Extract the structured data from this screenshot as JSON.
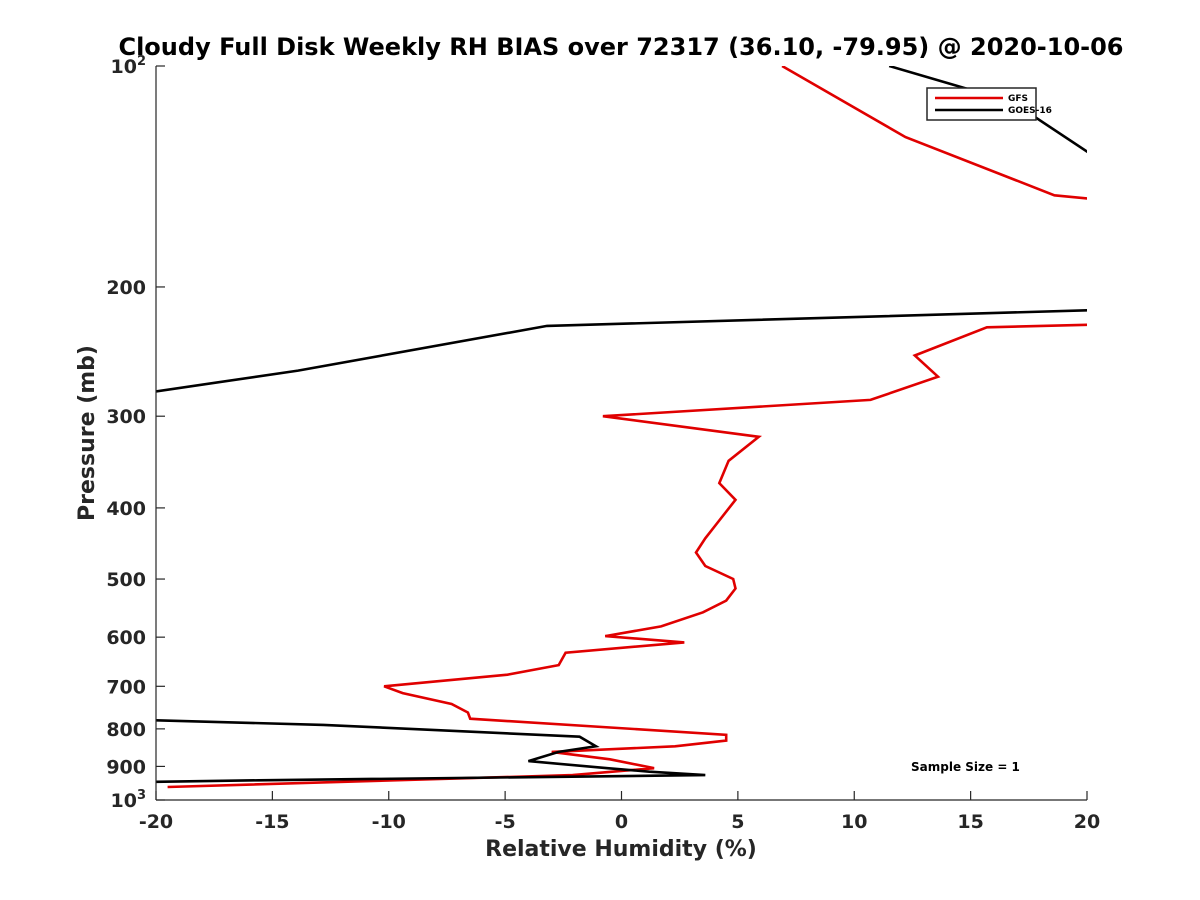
{
  "chart_data": {
    "type": "line",
    "title": "Cloudy Full Disk Weekly RH BIAS over 72317 (36.10, -79.95) @ 2020-10-06",
    "xlabel": "Relative Humidity (%)",
    "ylabel": "Pressure (mb)",
    "xlim": [
      -20,
      20
    ],
    "ylim": [
      100,
      1000
    ],
    "y_scale": "log",
    "y_reversed": true,
    "grid": false,
    "legend_position": "top-right",
    "annotation": "Sample Size = 1",
    "x_ticks": [
      "-20",
      "-15",
      "-10",
      "-5",
      "0",
      "5",
      "10",
      "15",
      "20"
    ],
    "y_ticks": [
      {
        "value": 100,
        "base": "10",
        "exp": "2"
      },
      {
        "value": 200,
        "label": "200"
      },
      {
        "value": 300,
        "label": "300"
      },
      {
        "value": 400,
        "label": "400"
      },
      {
        "value": 500,
        "label": "500"
      },
      {
        "value": 600,
        "label": "600"
      },
      {
        "value": 700,
        "label": "700"
      },
      {
        "value": 800,
        "label": "800"
      },
      {
        "value": 900,
        "label": "900"
      },
      {
        "value": 1000,
        "base": "10",
        "exp": "3"
      }
    ],
    "series": [
      {
        "name": "GFS",
        "color": "#e00000",
        "points": [
          {
            "x": 6.9,
            "p": 100
          },
          {
            "x": 12.2,
            "p": 125
          },
          {
            "x": 18.6,
            "p": 150
          },
          {
            "x": 20.5,
            "p": 152
          },
          {
            "x": 20.5,
            "p": 225
          },
          {
            "x": 15.7,
            "p": 227
          },
          {
            "x": 12.6,
            "p": 248
          },
          {
            "x": 13.6,
            "p": 265
          },
          {
            "x": 10.7,
            "p": 285
          },
          {
            "x": -0.8,
            "p": 300
          },
          {
            "x": 5.9,
            "p": 320
          },
          {
            "x": 4.6,
            "p": 345
          },
          {
            "x": 4.2,
            "p": 370
          },
          {
            "x": 4.9,
            "p": 390
          },
          {
            "x": 4.1,
            "p": 420
          },
          {
            "x": 3.6,
            "p": 440
          },
          {
            "x": 3.2,
            "p": 460
          },
          {
            "x": 3.6,
            "p": 480
          },
          {
            "x": 4.8,
            "p": 500
          },
          {
            "x": 4.9,
            "p": 515
          },
          {
            "x": 4.5,
            "p": 535
          },
          {
            "x": 3.5,
            "p": 555
          },
          {
            "x": 1.7,
            "p": 580
          },
          {
            "x": -0.7,
            "p": 598
          },
          {
            "x": 2.7,
            "p": 610
          },
          {
            "x": -2.4,
            "p": 630
          },
          {
            "x": -2.7,
            "p": 655
          },
          {
            "x": -4.9,
            "p": 675
          },
          {
            "x": -8.1,
            "p": 690
          },
          {
            "x": -10.2,
            "p": 700
          },
          {
            "x": -9.4,
            "p": 715
          },
          {
            "x": -7.3,
            "p": 740
          },
          {
            "x": -6.6,
            "p": 760
          },
          {
            "x": -6.5,
            "p": 775
          },
          {
            "x": 4.5,
            "p": 815
          },
          {
            "x": 4.5,
            "p": 830
          },
          {
            "x": 2.3,
            "p": 845
          },
          {
            "x": -3.0,
            "p": 860
          },
          {
            "x": -0.5,
            "p": 880
          },
          {
            "x": 1.4,
            "p": 905
          },
          {
            "x": -2.1,
            "p": 925
          },
          {
            "x": -19.5,
            "p": 960
          }
        ]
      },
      {
        "name": "GOES-16",
        "color": "#000000",
        "points": [
          {
            "x": 11.5,
            "p": 100
          },
          {
            "x": 16.8,
            "p": 112
          },
          {
            "x": 20.5,
            "p": 134
          },
          {
            "x": 20.5,
            "p": 215
          },
          {
            "x": -3.2,
            "p": 226
          },
          {
            "x": -13.9,
            "p": 260
          },
          {
            "x": -20.5,
            "p": 279
          },
          {
            "x": -20.5,
            "p": 778
          },
          {
            "x": -12.8,
            "p": 790
          },
          {
            "x": -1.8,
            "p": 820
          },
          {
            "x": -1.1,
            "p": 845
          },
          {
            "x": -2.7,
            "p": 860
          },
          {
            "x": -4.0,
            "p": 885
          },
          {
            "x": -0.6,
            "p": 905
          },
          {
            "x": 1.2,
            "p": 915
          },
          {
            "x": 3.6,
            "p": 925
          },
          {
            "x": -15.6,
            "p": 940
          },
          {
            "x": -20.5,
            "p": 945
          }
        ]
      }
    ]
  }
}
